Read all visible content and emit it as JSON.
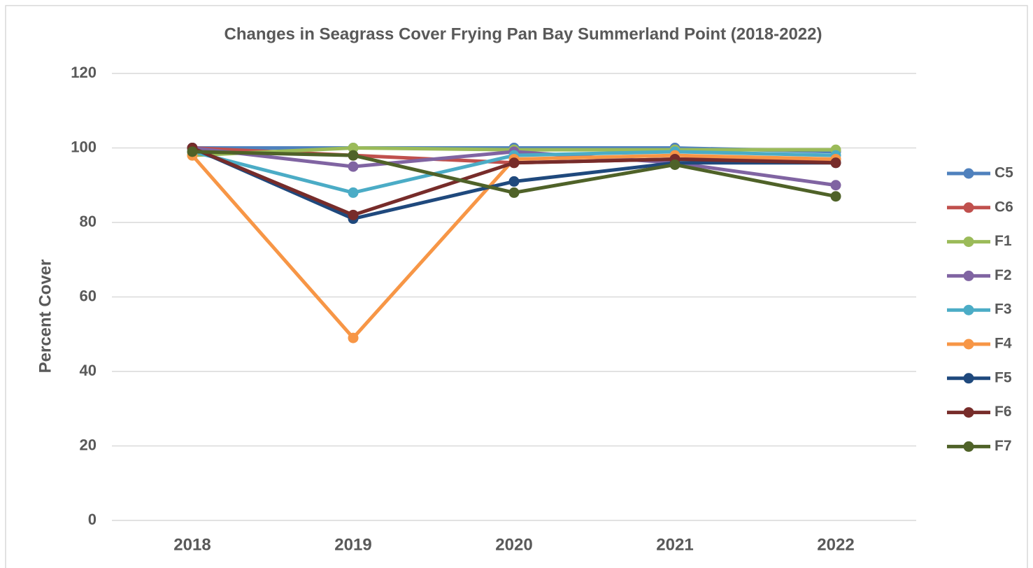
{
  "chart_data": {
    "type": "line",
    "title": "Changes in Seagrass Cover Frying Pan Bay Summerland Point (2018-2022)",
    "y_label": "Percent Cover",
    "categories": [
      "2018",
      "2019",
      "2020",
      "2021",
      "2022"
    ],
    "ylim": [
      0,
      120
    ],
    "yticks": [
      0,
      20,
      40,
      60,
      80,
      100,
      120
    ],
    "grid": true,
    "legend": "right",
    "series": [
      {
        "name": "C5",
        "color": "#4f81bd",
        "values": [
          100,
          100,
          100,
          100,
          99
        ]
      },
      {
        "name": "C6",
        "color": "#c0504d",
        "values": [
          100,
          98,
          96,
          97,
          97
        ]
      },
      {
        "name": "F1",
        "color": "#9bbb59",
        "values": [
          98,
          100,
          99.5,
          99.5,
          99.5
        ]
      },
      {
        "name": "F2",
        "color": "#8064a2",
        "values": [
          100,
          95,
          99,
          96,
          90
        ]
      },
      {
        "name": "F3",
        "color": "#4bacc6",
        "values": [
          99,
          88,
          98,
          99,
          98
        ]
      },
      {
        "name": "F4",
        "color": "#f79646",
        "values": [
          98,
          49,
          97,
          98,
          97
        ]
      },
      {
        "name": "F5",
        "color": "#1f497d",
        "values": [
          100,
          81,
          91,
          96,
          96
        ]
      },
      {
        "name": "F6",
        "color": "#772c2a",
        "values": [
          100,
          82,
          96,
          97,
          96
        ]
      },
      {
        "name": "F7",
        "color": "#4f6228",
        "values": [
          99,
          98,
          88,
          95.5,
          87
        ]
      }
    ]
  }
}
